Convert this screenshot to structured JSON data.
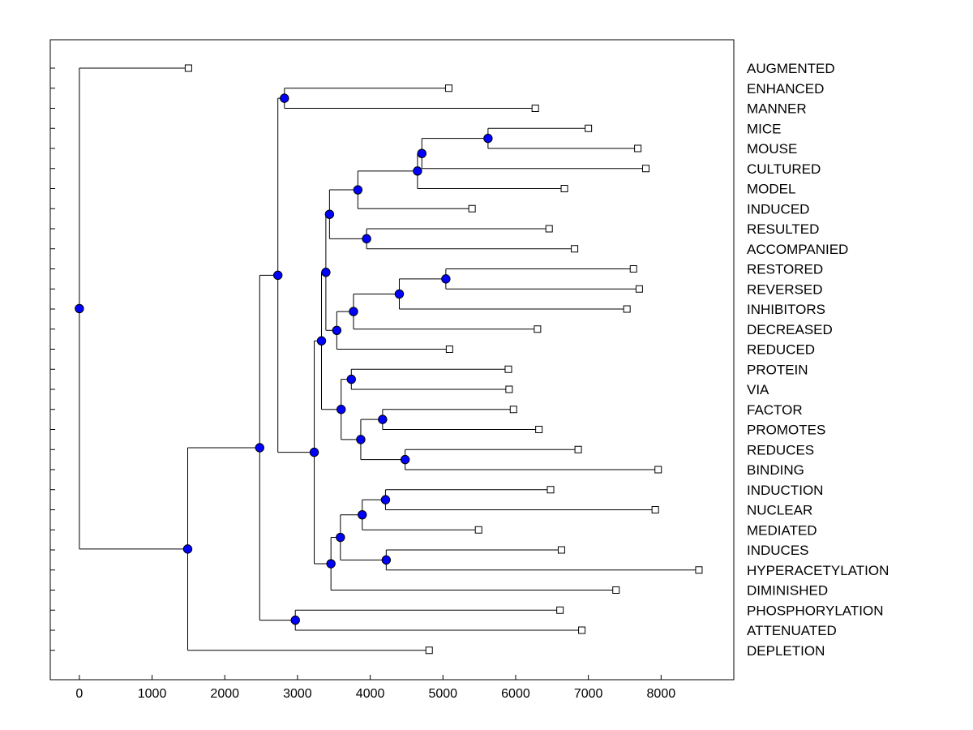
{
  "chart_data": {
    "type": "dendrogram",
    "xlim": [
      -400,
      9000
    ],
    "x_ticks": [
      0,
      1000,
      2000,
      3000,
      4000,
      5000,
      6000,
      7000,
      8000
    ],
    "x_tick_labels": [
      "0",
      "1000",
      "2000",
      "3000",
      "4000",
      "5000",
      "6000",
      "7000",
      "8000"
    ],
    "leaves": [
      {
        "label": "AUGMENTED",
        "x": 1500
      },
      {
        "label": "ENHANCED",
        "x": 5080
      },
      {
        "label": "MANNER",
        "x": 6270
      },
      {
        "label": "MICE",
        "x": 7000
      },
      {
        "label": "MOUSE",
        "x": 7680
      },
      {
        "label": "CULTURED",
        "x": 7790
      },
      {
        "label": "MODEL",
        "x": 6670
      },
      {
        "label": "INDUCED",
        "x": 5400
      },
      {
        "label": "RESULTED",
        "x": 6460
      },
      {
        "label": "ACCOMPANIED",
        "x": 6810
      },
      {
        "label": "RESTORED",
        "x": 7620
      },
      {
        "label": "REVERSED",
        "x": 7700
      },
      {
        "label": "INHIBITORS",
        "x": 7530
      },
      {
        "label": "DECREASED",
        "x": 6300
      },
      {
        "label": "REDUCED",
        "x": 5090
      },
      {
        "label": "PROTEIN",
        "x": 5900
      },
      {
        "label": "VIA",
        "x": 5910
      },
      {
        "label": "FACTOR",
        "x": 5970
      },
      {
        "label": "PROMOTES",
        "x": 6320
      },
      {
        "label": "REDUCES",
        "x": 6860
      },
      {
        "label": "BINDING",
        "x": 7960
      },
      {
        "label": "INDUCTION",
        "x": 6480
      },
      {
        "label": "NUCLEAR",
        "x": 7920
      },
      {
        "label": "MEDIATED",
        "x": 5490
      },
      {
        "label": "INDUCES",
        "x": 6630
      },
      {
        "label": "HYPERACETYLATION",
        "x": 8520
      },
      {
        "label": "DIMINISHED",
        "x": 7380
      },
      {
        "label": "PHOSPHORYLATION",
        "x": 6610
      },
      {
        "label": "ATTENUATED",
        "x": 6910
      },
      {
        "label": "DEPLETION",
        "x": 4810
      }
    ],
    "merges": [
      {
        "id": "n_mice_mouse",
        "x": 5620,
        "children": [
          "MICE",
          "MOUSE"
        ]
      },
      {
        "id": "n_cultured",
        "x": 4710,
        "children": [
          "n_mice_mouse",
          "CULTURED"
        ]
      },
      {
        "id": "n_model",
        "x": 4650,
        "children": [
          "n_cultured",
          "MODEL"
        ]
      },
      {
        "id": "n_induced",
        "x": 3830,
        "children": [
          "n_model",
          "INDUCED"
        ]
      },
      {
        "id": "n_res_acc",
        "x": 3950,
        "children": [
          "RESULTED",
          "ACCOMPANIED"
        ]
      },
      {
        "id": "n_group_a",
        "x": 3440,
        "children": [
          "n_induced",
          "n_res_acc"
        ]
      },
      {
        "id": "n_res_rev",
        "x": 5040,
        "children": [
          "RESTORED",
          "REVERSED"
        ]
      },
      {
        "id": "n_inhib",
        "x": 4400,
        "children": [
          "n_res_rev",
          "INHIBITORS"
        ]
      },
      {
        "id": "n_decr",
        "x": 3770,
        "children": [
          "n_inhib",
          "DECREASED"
        ]
      },
      {
        "id": "n_reduced",
        "x": 3540,
        "children": [
          "n_decr",
          "REDUCED"
        ]
      },
      {
        "id": "n_group_b",
        "x": 3390,
        "children": [
          "n_group_a",
          "n_reduced"
        ]
      },
      {
        "id": "n_prot_via",
        "x": 3740,
        "children": [
          "PROTEIN",
          "VIA"
        ]
      },
      {
        "id": "n_fact_prom",
        "x": 4170,
        "children": [
          "FACTOR",
          "PROMOTES"
        ]
      },
      {
        "id": "n_red_bind",
        "x": 4480,
        "children": [
          "REDUCES",
          "BINDING"
        ]
      },
      {
        "id": "n_fpr",
        "x": 3870,
        "children": [
          "n_fact_prom",
          "n_red_bind"
        ]
      },
      {
        "id": "n_group_c",
        "x": 3600,
        "children": [
          "n_prot_via",
          "n_fpr"
        ]
      },
      {
        "id": "n_bc",
        "x": 3330,
        "children": [
          "n_group_b",
          "n_group_c"
        ]
      },
      {
        "id": "n_ind_nuc",
        "x": 4210,
        "children": [
          "INDUCTION",
          "NUCLEAR"
        ]
      },
      {
        "id": "n_mediated",
        "x": 3890,
        "children": [
          "n_ind_nuc",
          "MEDIATED"
        ]
      },
      {
        "id": "n_ind_hyp",
        "x": 4220,
        "children": [
          "INDUCES",
          "HYPERACETYLATION"
        ]
      },
      {
        "id": "n_group_d",
        "x": 3590,
        "children": [
          "n_mediated",
          "n_ind_hyp"
        ]
      },
      {
        "id": "n_dimin",
        "x": 3460,
        "children": [
          "n_group_d",
          "DIMINISHED"
        ]
      },
      {
        "id": "n_bcd",
        "x": 3230,
        "children": [
          "n_bc",
          "n_dimin"
        ]
      },
      {
        "id": "n_enh_man",
        "x": 2820,
        "children": [
          "ENHANCED",
          "MANNER"
        ]
      },
      {
        "id": "n_main",
        "x": 2730,
        "children": [
          "n_enh_man",
          "n_bcd"
        ]
      },
      {
        "id": "n_phos_att",
        "x": 2970,
        "children": [
          "PHOSPHORYLATION",
          "ATTENUATED"
        ]
      },
      {
        "id": "n_main2",
        "x": 2480,
        "children": [
          "n_main",
          "n_phos_att"
        ]
      },
      {
        "id": "n_depl",
        "x": 1490,
        "children": [
          "n_main2",
          "DEPLETION"
        ]
      },
      {
        "id": "n_root",
        "x": 0,
        "children": [
          "AUGMENTED",
          "n_depl"
        ]
      }
    ]
  }
}
